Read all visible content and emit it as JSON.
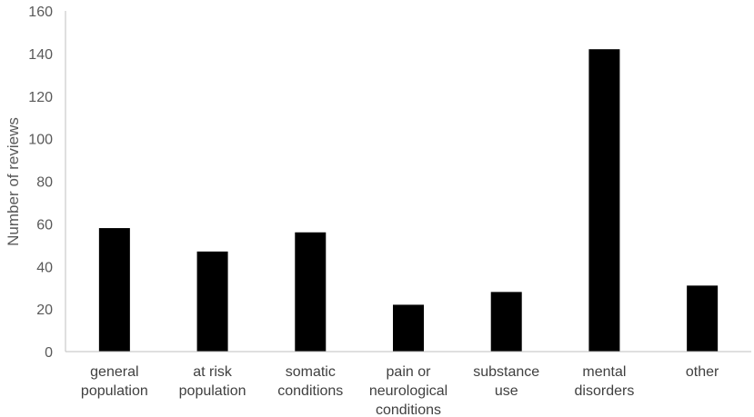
{
  "chart_data": {
    "type": "bar",
    "categories": [
      [
        "general",
        "population"
      ],
      [
        "at risk",
        "population"
      ],
      [
        "somatic",
        "conditions"
      ],
      [
        "pain or",
        "neurological",
        "conditions"
      ],
      [
        "substance",
        "use"
      ],
      [
        "mental",
        "disorders"
      ],
      [
        "other"
      ]
    ],
    "values": [
      58,
      47,
      56,
      22,
      28,
      142,
      31
    ],
    "ylabel": "Number of reviews",
    "xlabel": "",
    "ylim": [
      0,
      160
    ],
    "yticks": [
      0,
      20,
      40,
      60,
      80,
      100,
      120,
      140,
      160
    ],
    "grid": false,
    "legend": "none",
    "bar_color": "#000000",
    "axis_color": "#595959"
  }
}
